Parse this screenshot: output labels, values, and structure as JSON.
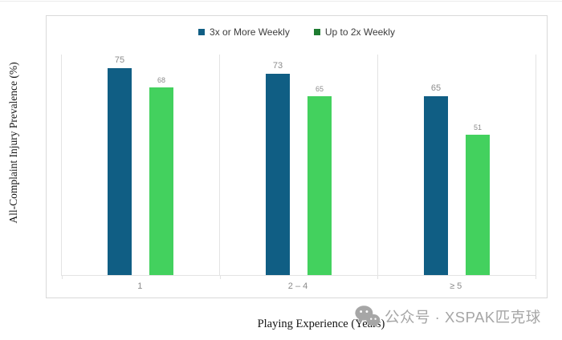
{
  "chart_data": {
    "type": "bar",
    "title": "",
    "categories": [
      "1",
      "2 – 4",
      "≥ 5"
    ],
    "series": [
      {
        "name": "3x or More Weekly",
        "color": "#105e84",
        "swatch_color": "#105e84",
        "values": [
          75,
          73,
          65
        ]
      },
      {
        "name": "Up to 2x Weekly",
        "color": "#43d15e",
        "swatch_color": "#1e7c31",
        "values": [
          68,
          65,
          51
        ]
      }
    ],
    "xlabel": "Playing Experience (Years)",
    "ylabel": "All-Complaint Injury Prevalence (%)",
    "ylim": [
      0,
      80
    ],
    "legend_position": "top-center",
    "grid": false,
    "value_labels": true
  },
  "watermark": {
    "icon": "wechat-icon",
    "text": "公众号 · XSPAK匹克球"
  }
}
